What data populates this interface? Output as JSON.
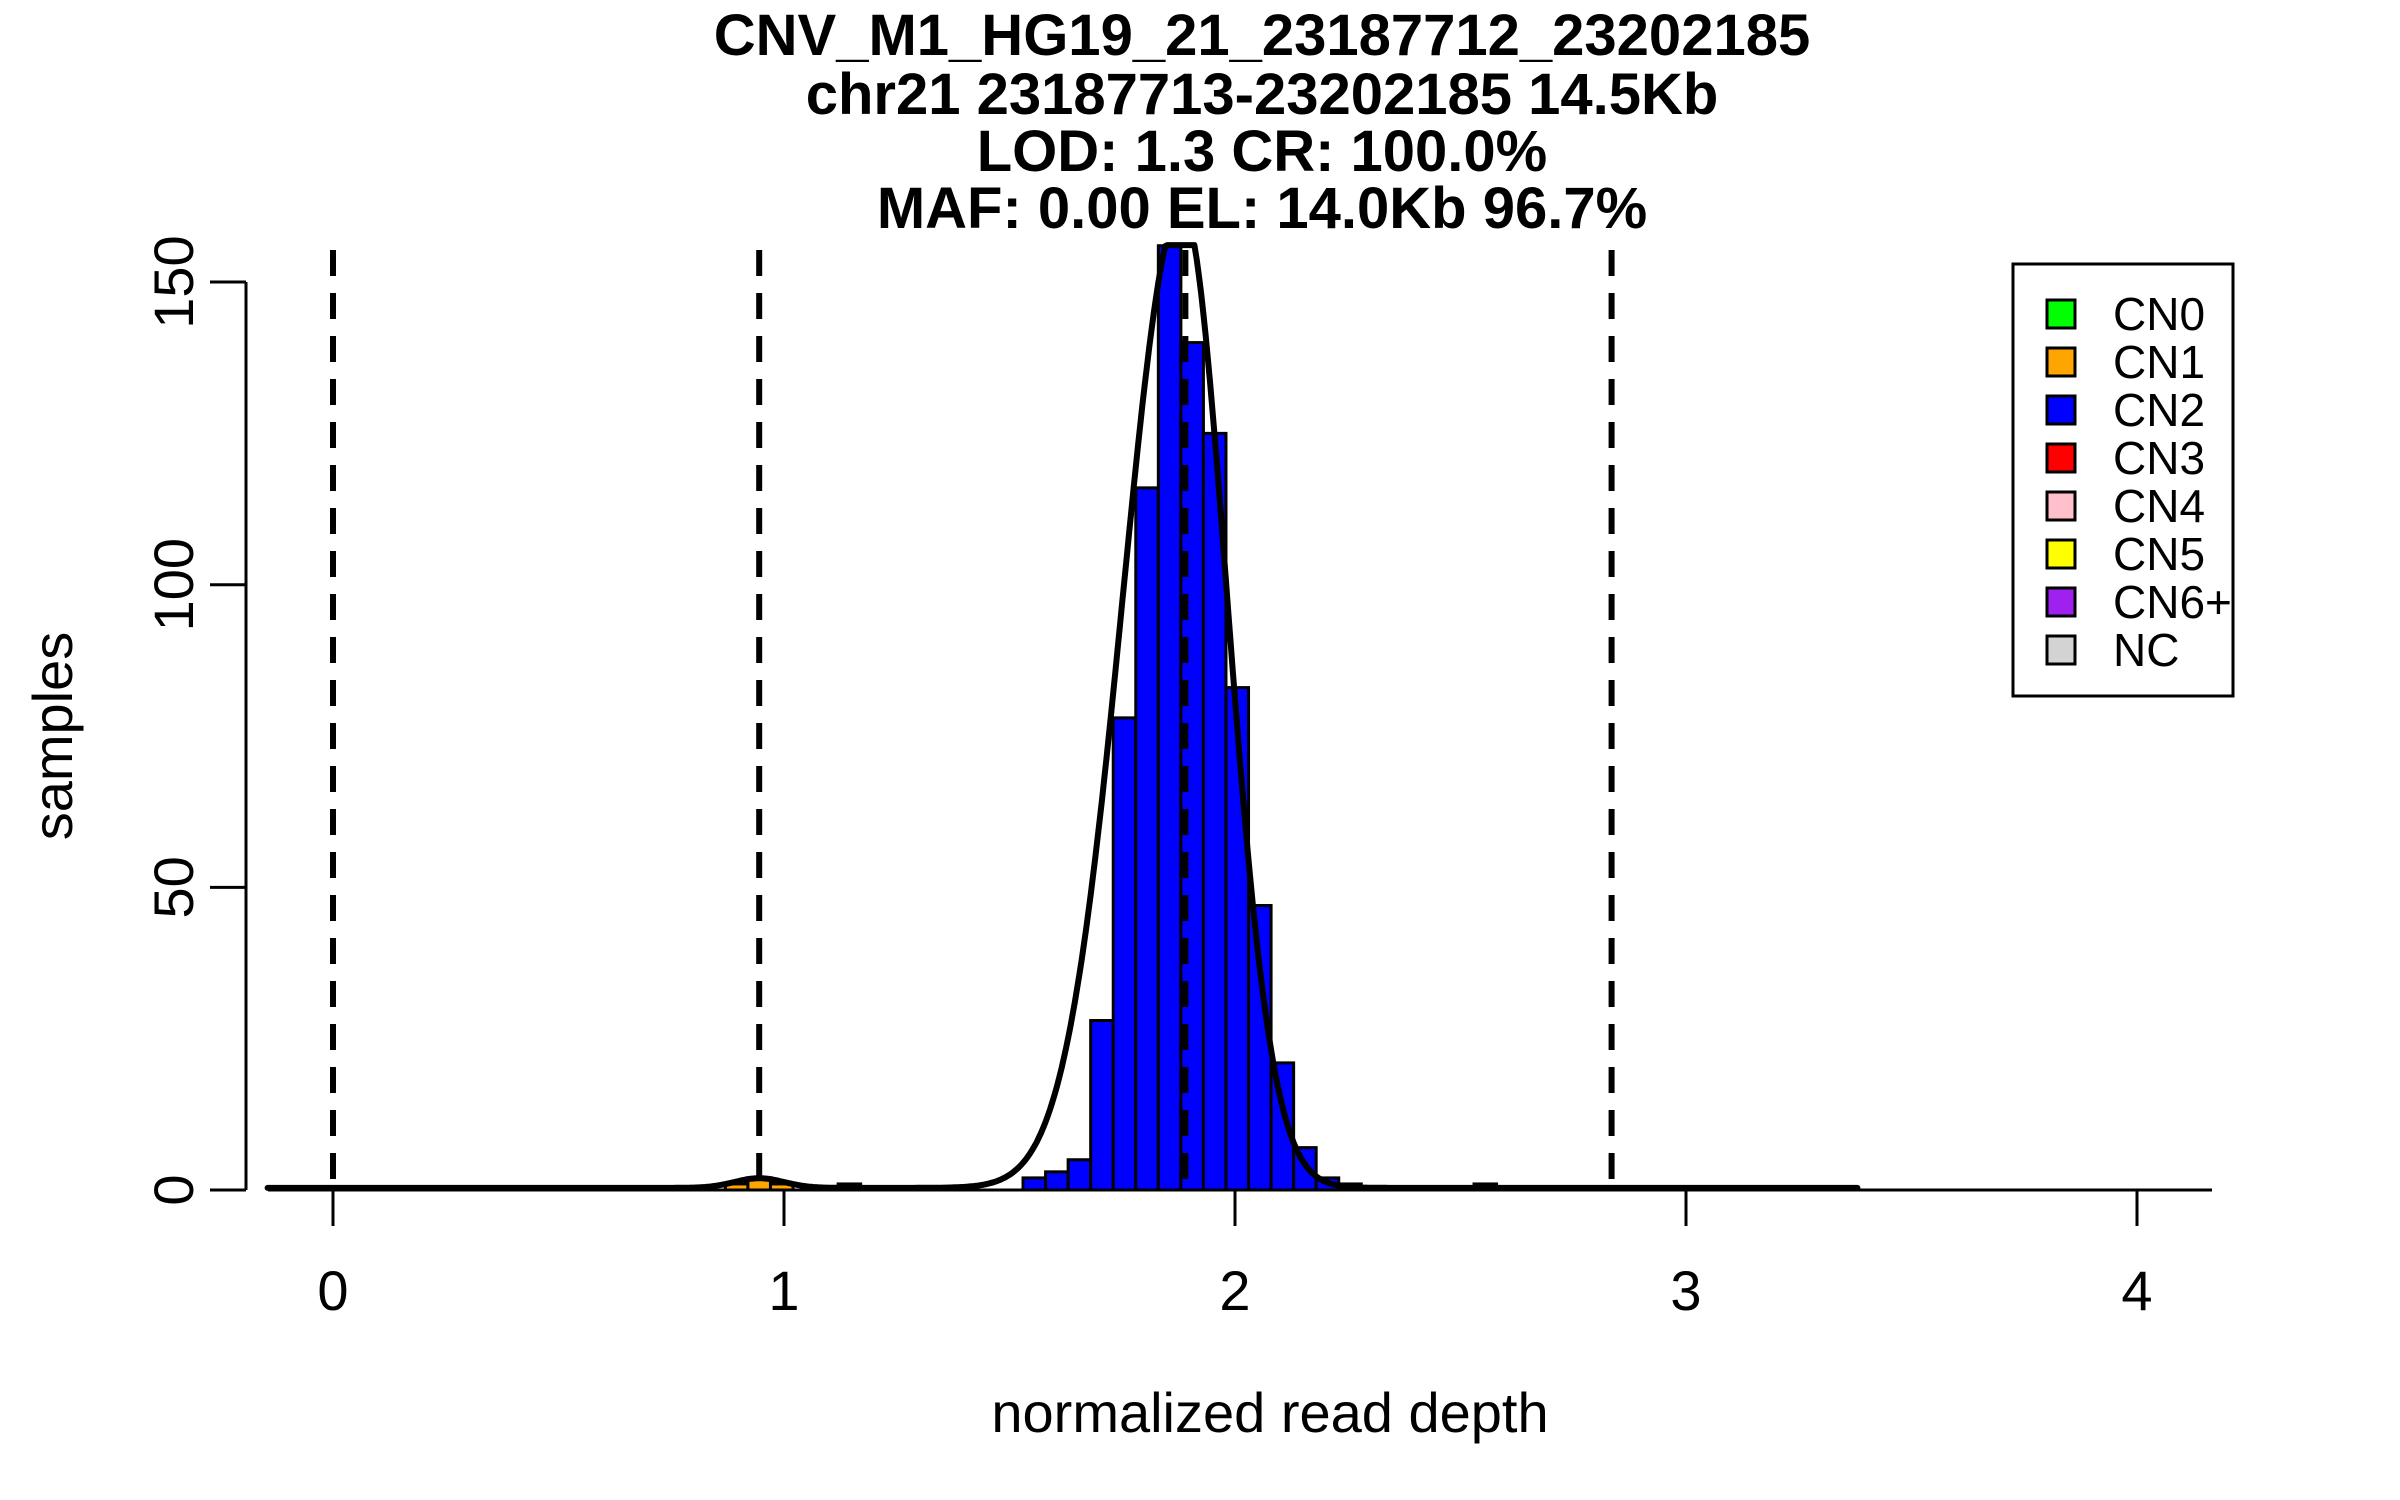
{
  "page": {
    "background": "#FFFFFF"
  },
  "chart_data": {
    "type": "bar",
    "subtype": "histogram_with_density_curve",
    "title_lines": [
      "CNV_M1_HG19_21_23187712_23202185",
      "chr21 23187713-23202185 14.5Kb",
      "LOD: 1.3 CR: 100.0%",
      "MAF: 0.00 EL: 14.0Kb 96.7%"
    ],
    "xlabel": "normalized read depth",
    "ylabel": "samples",
    "x_ticks": [
      0,
      1,
      2,
      3,
      4
    ],
    "y_ticks": [
      0,
      50,
      100,
      150
    ],
    "x_range_shown": [
      -0.19,
      4.49
    ],
    "y_range_shown": [
      0,
      156
    ],
    "grid": false,
    "dashed_vlines_x": [
      0,
      0.945,
      1.89,
      2.835
    ],
    "bin_width": 0.05,
    "bars": [
      {
        "x_left": 0.87,
        "count": 1,
        "group": "CN1"
      },
      {
        "x_left": 0.92,
        "count": 2,
        "group": "CN1"
      },
      {
        "x_left": 0.97,
        "count": 1,
        "group": "CN1"
      },
      {
        "x_left": 1.12,
        "count": 1,
        "group": "NC"
      },
      {
        "x_left": 1.53,
        "count": 2,
        "group": "CN2"
      },
      {
        "x_left": 1.58,
        "count": 3,
        "group": "CN2"
      },
      {
        "x_left": 1.63,
        "count": 5,
        "group": "CN2"
      },
      {
        "x_left": 1.68,
        "count": 28,
        "group": "CN2"
      },
      {
        "x_left": 1.73,
        "count": 78,
        "group": "CN2"
      },
      {
        "x_left": 1.78,
        "count": 116,
        "group": "CN2"
      },
      {
        "x_left": 1.83,
        "count": 156,
        "group": "CN2",
        "clipped_at_top": true
      },
      {
        "x_left": 1.88,
        "count": 140,
        "group": "CN2"
      },
      {
        "x_left": 1.93,
        "count": 125,
        "group": "CN2"
      },
      {
        "x_left": 1.98,
        "count": 83,
        "group": "CN2"
      },
      {
        "x_left": 2.03,
        "count": 47,
        "group": "CN2"
      },
      {
        "x_left": 2.08,
        "count": 21,
        "group": "CN2"
      },
      {
        "x_left": 2.13,
        "count": 7,
        "group": "CN2"
      },
      {
        "x_left": 2.18,
        "count": 2,
        "group": "CN2"
      },
      {
        "x_left": 2.23,
        "count": 1,
        "group": "CN2"
      },
      {
        "x_left": 2.53,
        "count": 1,
        "group": "NC"
      }
    ],
    "density_curve": {
      "color": "#000000",
      "floor": 0.35,
      "clip_at": 156.1,
      "x_range": [
        -0.145,
        3.38
      ],
      "components": [
        {
          "mu": 0.945,
          "amp": 1.6,
          "sigma_left": 0.055,
          "sigma_right": 0.055
        },
        {
          "mu": 1.882,
          "amp": 162,
          "sigma_left": 0.13,
          "sigma_right": 0.1
        }
      ]
    },
    "legend": {
      "position": "top-right",
      "items": [
        {
          "label": "CN0",
          "color": "#00FF00"
        },
        {
          "label": "CN1",
          "color": "#FFA500"
        },
        {
          "label": "CN2",
          "color": "#0000FF"
        },
        {
          "label": "CN3",
          "color": "#FF0000"
        },
        {
          "label": "CN4",
          "color": "#FFC0CB"
        },
        {
          "label": "CN5",
          "color": "#FFFF00"
        },
        {
          "label": "CN6+",
          "color": "#A020F0"
        },
        {
          "label": "NC",
          "color": "#D3D3D3"
        }
      ]
    },
    "group_colors": {
      "CN0": "#00FF00",
      "CN1": "#FFA500",
      "CN2": "#0000FF",
      "CN3": "#FF0000",
      "CN4": "#FFC0CB",
      "CN5": "#FFFF00",
      "CN6+": "#A020F0",
      "NC": "#D3D3D3"
    },
    "line_color": "#000000"
  }
}
